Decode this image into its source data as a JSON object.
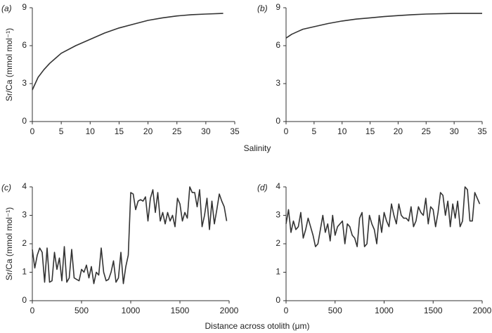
{
  "row_labels": [
    {
      "ylabel": "Sr/Ca (mmol mol⁻¹)",
      "xlabel": "Salinity"
    },
    {
      "ylabel": "Sr/Ca (mmol mol⁻¹)",
      "xlabel": "Distance across otolith (μm)"
    }
  ],
  "chart_data": [
    {
      "type": "line",
      "panel_label": "(a)",
      "color": "#333333",
      "x": [
        0,
        1,
        2,
        3,
        4,
        5,
        7.5,
        10,
        12.5,
        15,
        17.5,
        20,
        22.5,
        25,
        27.5,
        30,
        33
      ],
      "values": [
        2.5,
        3.5,
        4.1,
        4.6,
        5.0,
        5.4,
        6.0,
        6.5,
        7.0,
        7.4,
        7.7,
        8.0,
        8.2,
        8.35,
        8.45,
        8.5,
        8.55
      ],
      "xlim": [
        0,
        35
      ],
      "xticks": [
        0,
        5,
        10,
        15,
        20,
        25,
        30,
        35
      ],
      "ylim": [
        0,
        9
      ],
      "yticks": [
        0,
        3,
        6,
        9
      ]
    },
    {
      "type": "line",
      "panel_label": "(b)",
      "color": "#333333",
      "x": [
        0,
        1,
        2,
        3,
        5,
        7.5,
        10,
        12.5,
        15,
        17.5,
        20,
        22.5,
        25,
        30,
        35
      ],
      "values": [
        6.6,
        6.9,
        7.1,
        7.3,
        7.5,
        7.75,
        7.95,
        8.1,
        8.2,
        8.3,
        8.38,
        8.45,
        8.5,
        8.55,
        8.55
      ],
      "xlim": [
        0,
        35
      ],
      "xticks": [
        0,
        5,
        10,
        15,
        20,
        25,
        30,
        35
      ],
      "ylim": [
        0,
        9
      ],
      "yticks": [
        0,
        3,
        6,
        9
      ]
    },
    {
      "type": "line",
      "panel_label": "(c)",
      "color": "#333333",
      "x": [
        0,
        25,
        50,
        75,
        100,
        125,
        150,
        175,
        200,
        225,
        250,
        275,
        300,
        325,
        350,
        375,
        400,
        425,
        450,
        475,
        500,
        525,
        550,
        575,
        600,
        625,
        650,
        675,
        700,
        725,
        750,
        775,
        800,
        825,
        850,
        875,
        900,
        925,
        950,
        975,
        1000,
        1025,
        1050,
        1075,
        1100,
        1125,
        1150,
        1175,
        1200,
        1225,
        1250,
        1275,
        1300,
        1325,
        1350,
        1375,
        1400,
        1425,
        1450,
        1475,
        1500,
        1525,
        1550,
        1575,
        1600,
        1625,
        1650,
        1675,
        1700,
        1725,
        1750,
        1775,
        1800,
        1825,
        1850,
        1875,
        1900,
        1925,
        1950,
        1975
      ],
      "values": [
        1.8,
        1.15,
        1.6,
        1.85,
        1.7,
        0.65,
        1.85,
        0.65,
        0.7,
        1.7,
        1.1,
        1.5,
        0.7,
        1.9,
        0.65,
        0.8,
        1.8,
        0.8,
        0.75,
        0.7,
        1.1,
        1.0,
        1.25,
        0.8,
        1.2,
        0.6,
        1.0,
        0.9,
        1.85,
        1.0,
        0.7,
        0.75,
        1.0,
        1.4,
        0.65,
        0.8,
        1.7,
        0.6,
        1.2,
        1.6,
        3.8,
        3.75,
        3.2,
        3.5,
        3.55,
        3.5,
        3.65,
        2.8,
        3.6,
        3.9,
        3.1,
        3.8,
        2.8,
        3.1,
        2.7,
        3.1,
        2.8,
        3.0,
        2.6,
        3.6,
        3.4,
        2.8,
        3.1,
        2.9,
        4.0,
        3.8,
        3.8,
        3.3,
        3.9,
        2.6,
        3.0,
        3.6,
        2.5,
        3.5,
        2.7,
        3.2,
        3.75,
        3.5,
        3.3,
        2.8
      ],
      "xlim": [
        0,
        2000
      ],
      "xticks": [
        0,
        500,
        1000,
        1500,
        2000
      ],
      "ylim": [
        0,
        4
      ],
      "yticks": [
        0,
        1,
        2,
        3,
        4
      ]
    },
    {
      "type": "line",
      "panel_label": "(d)",
      "color": "#333333",
      "x": [
        0,
        25,
        50,
        75,
        100,
        125,
        150,
        175,
        200,
        225,
        250,
        275,
        300,
        325,
        350,
        375,
        400,
        425,
        450,
        475,
        500,
        525,
        550,
        575,
        600,
        625,
        650,
        675,
        700,
        725,
        750,
        775,
        800,
        825,
        850,
        875,
        900,
        925,
        950,
        975,
        1000,
        1025,
        1050,
        1075,
        1100,
        1125,
        1150,
        1175,
        1200,
        1225,
        1250,
        1275,
        1300,
        1325,
        1350,
        1375,
        1400,
        1425,
        1450,
        1475,
        1500,
        1525,
        1550,
        1575,
        1600,
        1625,
        1650,
        1675,
        1700,
        1725,
        1750,
        1775,
        1800,
        1825,
        1850,
        1875,
        1900,
        1925,
        1950,
        1975
      ],
      "values": [
        2.7,
        3.2,
        2.4,
        2.8,
        2.5,
        2.6,
        3.1,
        2.2,
        2.5,
        2.9,
        2.6,
        2.3,
        1.9,
        2.0,
        2.5,
        3.0,
        2.4,
        2.7,
        2.1,
        3.0,
        2.3,
        2.6,
        2.7,
        2.8,
        2.0,
        2.7,
        2.6,
        2.3,
        2.2,
        1.9,
        2.9,
        3.1,
        1.9,
        2.0,
        3.0,
        2.7,
        2.5,
        2.0,
        3.0,
        2.4,
        3.1,
        2.8,
        2.6,
        3.4,
        3.0,
        2.7,
        3.4,
        3.0,
        2.9,
        2.9,
        2.8,
        3.3,
        2.6,
        2.8,
        3.3,
        3.1,
        3.0,
        3.6,
        2.7,
        3.3,
        3.2,
        2.6,
        3.1,
        3.8,
        3.7,
        3.0,
        3.5,
        2.6,
        3.4,
        2.9,
        3.5,
        2.6,
        2.8,
        4.0,
        3.9,
        2.8,
        2.8,
        3.8,
        3.6,
        3.4
      ],
      "xlim": [
        0,
        2000
      ],
      "xticks": [
        0,
        500,
        1000,
        1500,
        2000
      ],
      "ylim": [
        0,
        4
      ],
      "yticks": [
        0,
        1,
        2,
        3,
        4
      ]
    }
  ]
}
